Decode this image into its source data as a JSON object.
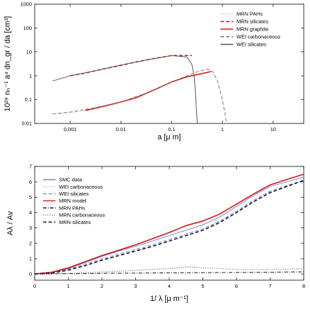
{
  "chart_data": [
    {
      "type": "line",
      "xlabel": "a [μ m]",
      "ylabel": "10²⁹ nₕ⁻¹ a⁴ dn_gr / da [cm³]",
      "xscale": "log",
      "yscale": "log",
      "xlim": [
        0.0002,
        40
      ],
      "ylim": [
        0.01,
        1000
      ],
      "xticks": [
        "0.001",
        "0.01",
        "0.1",
        "1",
        "10"
      ],
      "yticks": [
        "0.01",
        "0.1",
        "1",
        "10",
        "100",
        "1000"
      ],
      "legend_position": "top-right",
      "series": [
        {
          "name": "MRN PAHs",
          "color": "#e8a0a0",
          "style": "dotted",
          "x": [
            0.00045,
            0.001,
            0.002,
            0.005,
            0.01,
            0.02
          ],
          "y": [
            0.025,
            0.028,
            0.035,
            0.05,
            0.072,
            0.1
          ]
        },
        {
          "name": "MRN silicates",
          "color": "#dd1111",
          "style": "dashed",
          "x": [
            0.001,
            0.002,
            0.005,
            0.01,
            0.02,
            0.05,
            0.1,
            0.2,
            0.25
          ],
          "y": [
            1.0,
            1.3,
            2.0,
            2.7,
            3.8,
            5.5,
            7.0,
            7.0,
            7.0
          ]
        },
        {
          "name": "MRN graphite",
          "color": "#dd1111",
          "style": "solid",
          "x": [
            0.002,
            0.005,
            0.01,
            0.02,
            0.05,
            0.1,
            0.2,
            0.6
          ],
          "y": [
            0.035,
            0.055,
            0.08,
            0.12,
            0.28,
            0.55,
            0.9,
            1.5
          ]
        },
        {
          "name": "WEI carbonaceous",
          "color": "#777777",
          "style": "dashed",
          "x": [
            0.00045,
            0.001,
            0.003,
            0.01,
            0.03,
            0.1,
            0.3,
            0.5,
            0.65,
            0.8,
            1.0,
            1.2
          ],
          "y": [
            0.025,
            0.03,
            0.045,
            0.08,
            0.18,
            0.55,
            1.4,
            1.9,
            1.5,
            0.6,
            0.1,
            0.012
          ]
        },
        {
          "name": "WEI silicates",
          "color": "#555555",
          "style": "solid",
          "x": [
            0.00045,
            0.001,
            0.003,
            0.01,
            0.03,
            0.1,
            0.2,
            0.25,
            0.28,
            0.3,
            0.32
          ],
          "y": [
            0.6,
            1.0,
            1.6,
            2.8,
            4.5,
            7.0,
            6.0,
            3.0,
            0.8,
            0.1,
            0.01
          ]
        }
      ]
    },
    {
      "type": "line",
      "xlabel": "1/ λ [μ m⁻¹]",
      "ylabel": "Aλ / Av",
      "xlim": [
        0,
        8
      ],
      "ylim": [
        -0.4,
        7
      ],
      "xticks": [
        "0",
        "1",
        "2",
        "3",
        "4",
        "5",
        "6",
        "7",
        "8"
      ],
      "yticks": [
        "0",
        "1",
        "2",
        "3",
        "4",
        "5",
        "6",
        "7"
      ],
      "legend_position": "top-left",
      "series": [
        {
          "name": "SMC data",
          "color": "#6a8cc8",
          "style": "solid",
          "x": [
            0.0,
            0.5,
            1.0,
            1.5,
            2.0,
            2.5,
            3.0,
            3.5,
            4.0,
            4.5,
            5.0,
            5.5,
            6.0,
            6.5,
            7.0,
            7.5,
            8.0
          ],
          "y": [
            0.0,
            0.1,
            0.35,
            0.75,
            1.15,
            1.5,
            1.8,
            2.15,
            2.5,
            2.85,
            3.2,
            3.7,
            4.4,
            5.1,
            5.7,
            6.0,
            6.3
          ]
        },
        {
          "name": "WEI carbonaceous",
          "color": "#aaaaaa",
          "style": "dotted",
          "x": [
            0.0,
            1.0,
            2.0,
            3.0,
            4.0,
            4.6,
            5.0,
            6.0,
            7.0,
            8.0
          ],
          "y": [
            0.0,
            0.05,
            0.15,
            0.25,
            0.38,
            0.5,
            0.42,
            0.3,
            0.28,
            0.32
          ]
        },
        {
          "name": "WEI silicates",
          "color": "#6a8cc8",
          "style": "dashed",
          "x": [
            0.0,
            0.5,
            1.0,
            1.5,
            2.0,
            2.5,
            3.0,
            3.5,
            4.0,
            4.5,
            5.0,
            5.5,
            6.0,
            6.5,
            7.0,
            7.5,
            8.0
          ],
          "y": [
            0.0,
            0.08,
            0.3,
            0.65,
            1.0,
            1.3,
            1.6,
            1.9,
            2.25,
            2.6,
            2.95,
            3.45,
            4.1,
            4.8,
            5.4,
            5.75,
            6.1
          ]
        },
        {
          "name": "MRN model",
          "color": "#dd1111",
          "style": "solid",
          "x": [
            0.0,
            0.5,
            1.0,
            1.5,
            2.0,
            2.5,
            3.0,
            3.5,
            4.0,
            4.5,
            5.0,
            5.5,
            6.0,
            6.5,
            7.0,
            7.5,
            8.0
          ],
          "y": [
            0.0,
            0.12,
            0.4,
            0.8,
            1.2,
            1.55,
            1.9,
            2.3,
            2.7,
            3.15,
            3.45,
            3.9,
            4.55,
            5.2,
            5.8,
            6.15,
            6.5
          ]
        },
        {
          "name": "MRN PAHs",
          "color": "#111111",
          "style": "dashdot",
          "x": [
            0.0,
            1.0,
            2.0,
            3.0,
            4.0,
            5.0,
            6.0,
            7.0,
            8.0
          ],
          "y": [
            0.0,
            0.02,
            0.04,
            0.06,
            0.08,
            0.09,
            0.1,
            0.12,
            0.14
          ]
        },
        {
          "name": "MRN carbonaceous",
          "color": "#888888",
          "style": "dotted",
          "x": [
            0.0,
            1.0,
            2.0,
            3.0,
            4.0,
            4.6,
            5.0,
            6.0,
            7.0,
            8.0
          ],
          "y": [
            0.0,
            0.04,
            0.12,
            0.22,
            0.35,
            0.45,
            0.4,
            0.3,
            0.3,
            0.35
          ]
        },
        {
          "name": "MRN silicates",
          "color": "#111133",
          "style": "dashed",
          "x": [
            0.0,
            0.5,
            1.0,
            1.5,
            2.0,
            2.5,
            3.0,
            3.5,
            4.0,
            4.5,
            5.0,
            5.5,
            6.0,
            6.5,
            7.0,
            7.5,
            8.0
          ],
          "y": [
            0.0,
            0.06,
            0.25,
            0.55,
            0.9,
            1.2,
            1.5,
            1.8,
            2.15,
            2.5,
            2.85,
            3.35,
            4.0,
            4.7,
            5.3,
            5.7,
            6.1
          ]
        }
      ]
    }
  ]
}
